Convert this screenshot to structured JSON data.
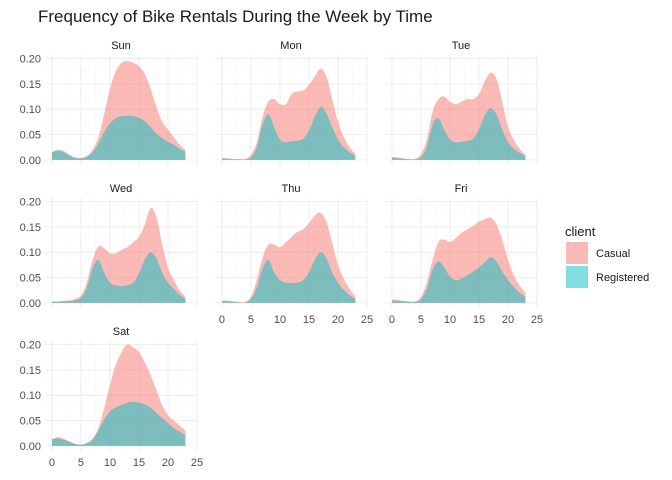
{
  "chart_data": {
    "type": "area",
    "title": "Frequency of Bike Rentals During the Week by Time",
    "xlabel": "",
    "ylabel": "",
    "xlim": [
      0,
      24
    ],
    "ylim": [
      0,
      0.2
    ],
    "x_ticks": [
      "0",
      "5",
      "10",
      "15",
      "20",
      "25"
    ],
    "y_ticks": [
      "0.00",
      "0.05",
      "0.10",
      "0.15",
      "0.20"
    ],
    "grid": true,
    "legend": {
      "title": "client",
      "position": "right",
      "entries": [
        {
          "name": "Casual",
          "color": "#F8766D"
        },
        {
          "name": "Registered",
          "color": "#00BFC4"
        }
      ]
    },
    "hours": [
      0,
      1,
      2,
      3,
      4,
      5,
      6,
      7,
      8,
      9,
      10,
      11,
      12,
      13,
      14,
      15,
      16,
      17,
      18,
      19,
      20,
      21,
      22,
      23
    ],
    "panels": [
      {
        "name": "Sun",
        "series": [
          {
            "name": "Casual",
            "values": [
              0.015,
              0.02,
              0.018,
              0.01,
              0.005,
              0.004,
              0.008,
              0.02,
              0.045,
              0.09,
              0.14,
              0.175,
              0.192,
              0.195,
              0.192,
              0.185,
              0.17,
              0.14,
              0.105,
              0.075,
              0.06,
              0.045,
              0.03,
              0.02
            ]
          },
          {
            "name": "Registered",
            "values": [
              0.015,
              0.018,
              0.015,
              0.009,
              0.004,
              0.003,
              0.006,
              0.015,
              0.032,
              0.055,
              0.072,
              0.082,
              0.086,
              0.087,
              0.086,
              0.083,
              0.076,
              0.065,
              0.052,
              0.043,
              0.036,
              0.03,
              0.022,
              0.016
            ]
          }
        ]
      },
      {
        "name": "Mon",
        "series": [
          {
            "name": "Casual",
            "values": [
              0.004,
              0.003,
              0.002,
              0.002,
              0.002,
              0.01,
              0.035,
              0.085,
              0.115,
              0.12,
              0.11,
              0.11,
              0.13,
              0.135,
              0.137,
              0.148,
              0.165,
              0.18,
              0.165,
              0.12,
              0.075,
              0.045,
              0.025,
              0.012
            ]
          },
          {
            "name": "Registered",
            "values": [
              0.003,
              0.002,
              0.001,
              0.001,
              0.001,
              0.005,
              0.025,
              0.07,
              0.09,
              0.065,
              0.04,
              0.035,
              0.037,
              0.038,
              0.042,
              0.058,
              0.085,
              0.105,
              0.092,
              0.065,
              0.04,
              0.025,
              0.015,
              0.008
            ]
          }
        ]
      },
      {
        "name": "Tue",
        "series": [
          {
            "name": "Casual",
            "values": [
              0.006,
              0.005,
              0.003,
              0.002,
              0.002,
              0.012,
              0.04,
              0.095,
              0.12,
              0.125,
              0.115,
              0.11,
              0.115,
              0.12,
              0.12,
              0.13,
              0.155,
              0.172,
              0.16,
              0.115,
              0.065,
              0.04,
              0.022,
              0.01
            ]
          },
          {
            "name": "Registered",
            "values": [
              0.004,
              0.003,
              0.002,
              0.001,
              0.001,
              0.006,
              0.025,
              0.07,
              0.082,
              0.06,
              0.04,
              0.035,
              0.036,
              0.038,
              0.042,
              0.06,
              0.088,
              0.102,
              0.09,
              0.06,
              0.035,
              0.022,
              0.014,
              0.008
            ]
          }
        ]
      },
      {
        "name": "Wed",
        "series": [
          {
            "name": "Casual",
            "values": [
              0.003,
              0.003,
              0.004,
              0.005,
              0.008,
              0.015,
              0.04,
              0.085,
              0.112,
              0.108,
              0.098,
              0.098,
              0.105,
              0.11,
              0.12,
              0.13,
              0.155,
              0.187,
              0.17,
              0.115,
              0.07,
              0.045,
              0.025,
              0.012
            ]
          },
          {
            "name": "Registered",
            "values": [
              0.002,
              0.002,
              0.003,
              0.003,
              0.005,
              0.01,
              0.03,
              0.068,
              0.085,
              0.06,
              0.04,
              0.035,
              0.033,
              0.035,
              0.04,
              0.058,
              0.085,
              0.1,
              0.088,
              0.06,
              0.04,
              0.028,
              0.016,
              0.008
            ]
          }
        ]
      },
      {
        "name": "Thu",
        "series": [
          {
            "name": "Casual",
            "values": [
              0.005,
              0.005,
              0.003,
              0.002,
              0.002,
              0.012,
              0.045,
              0.09,
              0.115,
              0.115,
              0.11,
              0.12,
              0.13,
              0.14,
              0.145,
              0.158,
              0.172,
              0.178,
              0.16,
              0.118,
              0.075,
              0.048,
              0.028,
              0.012
            ]
          },
          {
            "name": "Registered",
            "values": [
              0.003,
              0.003,
              0.002,
              0.001,
              0.001,
              0.008,
              0.03,
              0.068,
              0.085,
              0.06,
              0.045,
              0.04,
              0.04,
              0.04,
              0.045,
              0.06,
              0.085,
              0.1,
              0.088,
              0.06,
              0.04,
              0.026,
              0.015,
              0.008
            ]
          }
        ]
      },
      {
        "name": "Fri",
        "series": [
          {
            "name": "Casual",
            "values": [
              0.007,
              0.006,
              0.004,
              0.003,
              0.003,
              0.012,
              0.04,
              0.085,
              0.12,
              0.125,
              0.12,
              0.128,
              0.138,
              0.145,
              0.152,
              0.16,
              0.165,
              0.168,
              0.155,
              0.125,
              0.085,
              0.055,
              0.035,
              0.02
            ]
          },
          {
            "name": "Registered",
            "values": [
              0.005,
              0.004,
              0.003,
              0.002,
              0.002,
              0.007,
              0.028,
              0.065,
              0.082,
              0.07,
              0.052,
              0.045,
              0.048,
              0.055,
              0.062,
              0.07,
              0.08,
              0.09,
              0.082,
              0.062,
              0.045,
              0.032,
              0.02,
              0.012
            ]
          }
        ]
      },
      {
        "name": "Sat",
        "series": [
          {
            "name": "Casual",
            "values": [
              0.013,
              0.017,
              0.014,
              0.009,
              0.004,
              0.003,
              0.006,
              0.015,
              0.035,
              0.075,
              0.12,
              0.16,
              0.185,
              0.2,
              0.195,
              0.185,
              0.165,
              0.14,
              0.11,
              0.08,
              0.06,
              0.05,
              0.04,
              0.03
            ]
          },
          {
            "name": "Registered",
            "values": [
              0.013,
              0.015,
              0.012,
              0.008,
              0.004,
              0.002,
              0.005,
              0.012,
              0.03,
              0.052,
              0.068,
              0.076,
              0.081,
              0.085,
              0.087,
              0.085,
              0.082,
              0.075,
              0.065,
              0.055,
              0.045,
              0.035,
              0.028,
              0.022
            ]
          }
        ]
      }
    ]
  }
}
